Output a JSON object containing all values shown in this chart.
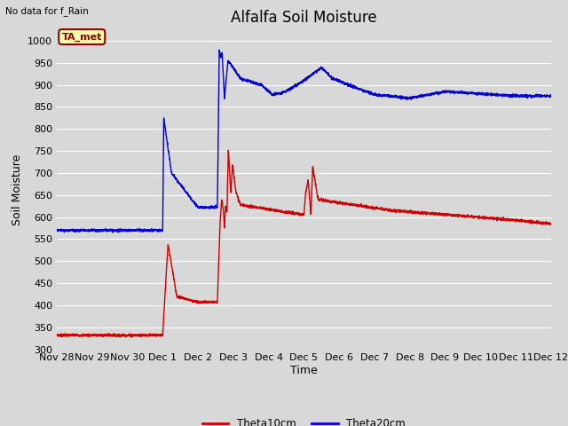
{
  "title": "Alfalfa Soil Moisture",
  "xlabel": "Time",
  "ylabel": "Soil Moisture",
  "top_left_text": "No data for f_Rain",
  "annotation_box": "TA_met",
  "ylim": [
    300,
    1025
  ],
  "yticks": [
    300,
    350,
    400,
    450,
    500,
    550,
    600,
    650,
    700,
    750,
    800,
    850,
    900,
    950,
    1000
  ],
  "background_color": "#d8d8d8",
  "plot_bg_color": "#d8d8d8",
  "grid_color": "white",
  "line_color_red": "#cc0000",
  "line_color_blue": "#0000cc",
  "legend_label_red": "Theta10cm",
  "legend_label_blue": "Theta20cm",
  "title_fontsize": 12,
  "axis_label_fontsize": 9,
  "tick_label_fontsize": 8,
  "x_tick_labels": [
    "Nov 28",
    "Nov 29",
    "Nov 30",
    "Dec 1",
    "Dec 2",
    "Dec 3",
    "Dec 4",
    "Dec 5",
    "Dec 6",
    "Dec 7",
    "Dec 8",
    "Dec 9",
    "Dec 10",
    "Dec 11",
    "Dec 12"
  ],
  "x_tick_positions": [
    0,
    1,
    2,
    3,
    4,
    5,
    6,
    7,
    8,
    9,
    10,
    11,
    12,
    13,
    14
  ]
}
